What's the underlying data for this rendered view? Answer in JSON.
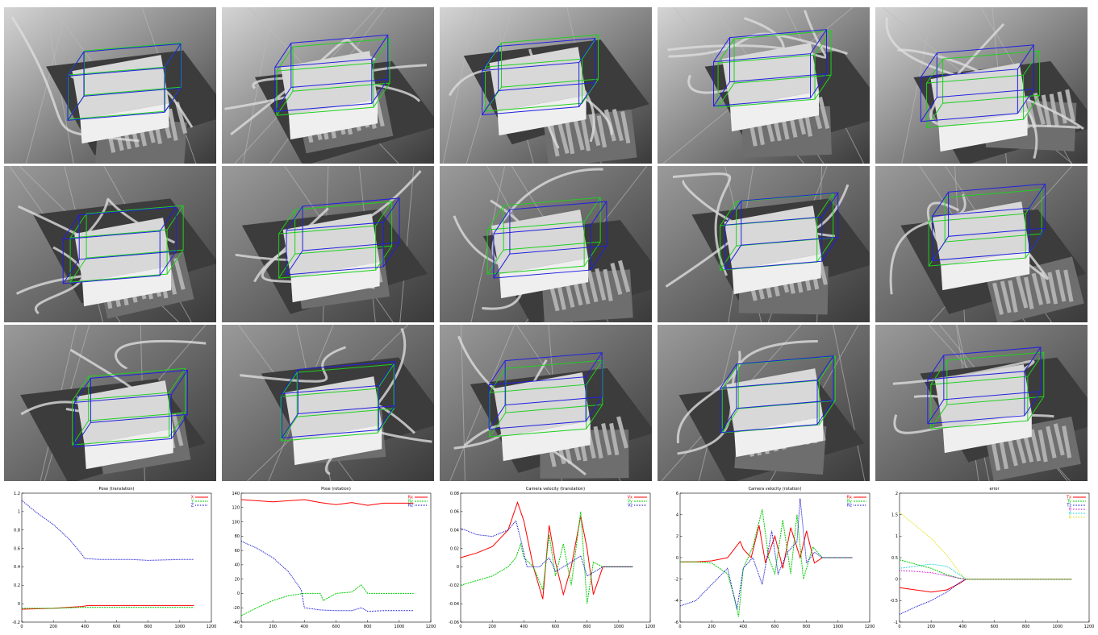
{
  "frames": [
    {
      "name": "frame-r1-c1"
    },
    {
      "name": "frame-r1-c2"
    },
    {
      "name": "frame-r1-c3"
    },
    {
      "name": "frame-r1-c4"
    },
    {
      "name": "frame-r1-c5"
    },
    {
      "name": "frame-r2-c1"
    },
    {
      "name": "frame-r2-c2"
    },
    {
      "name": "frame-r2-c3"
    },
    {
      "name": "frame-r2-c4"
    },
    {
      "name": "frame-r2-c5"
    },
    {
      "name": "frame-r3-c1"
    },
    {
      "name": "frame-r3-c2"
    },
    {
      "name": "frame-r3-c3"
    },
    {
      "name": "frame-r3-c4"
    },
    {
      "name": "frame-r3-c5"
    }
  ],
  "colors": {
    "model_wire": "#2020e0",
    "tracked_wire": "#20d020",
    "red": "#ff0000",
    "green": "#00cc00",
    "blue": "#0000cc",
    "magenta": "#cc00cc",
    "cyan": "#00cccc",
    "yellow": "#e0e000"
  },
  "chart_data": [
    {
      "type": "line",
      "title": "Pose (translation)",
      "xlim": [
        0,
        1200
      ],
      "ylim": [
        -0.2,
        1.2
      ],
      "xticks": [
        0,
        200,
        400,
        600,
        800,
        1000,
        1200
      ],
      "yticks": [
        -0.2,
        0,
        0.2,
        0.4,
        0.6,
        0.8,
        1,
        1.2
      ],
      "legend": "top-right",
      "series": [
        {
          "name": "X",
          "color": "#ff0000",
          "x": [
            0,
            200,
            380,
            420,
            600,
            800,
            1000,
            1090
          ],
          "y": [
            -0.06,
            -0.05,
            -0.03,
            -0.02,
            -0.02,
            -0.02,
            -0.02,
            -0.02
          ]
        },
        {
          "name": "Y",
          "color": "#00cc00",
          "x": [
            0,
            200,
            380,
            420,
            600,
            800,
            1000,
            1090
          ],
          "y": [
            -0.05,
            -0.05,
            -0.04,
            -0.04,
            -0.04,
            -0.04,
            -0.04,
            -0.04
          ]
        },
        {
          "name": "Z",
          "color": "#0000cc",
          "x": [
            0,
            100,
            200,
            300,
            360,
            400,
            500,
            600,
            700,
            800,
            1000,
            1090
          ],
          "y": [
            1.12,
            0.98,
            0.86,
            0.7,
            0.58,
            0.49,
            0.48,
            0.48,
            0.48,
            0.47,
            0.48,
            0.48
          ]
        }
      ]
    },
    {
      "type": "line",
      "title": "Pose (rotation)",
      "xlim": [
        0,
        1200
      ],
      "ylim": [
        -40,
        140
      ],
      "xticks": [
        0,
        200,
        400,
        600,
        800,
        1000,
        1200
      ],
      "yticks": [
        -40,
        -20,
        0,
        20,
        40,
        60,
        80,
        100,
        120,
        140
      ],
      "legend": "top-right",
      "series": [
        {
          "name": "Rx",
          "color": "#ff0000",
          "x": [
            0,
            200,
            400,
            500,
            600,
            700,
            800,
            900,
            1000,
            1090
          ],
          "y": [
            131,
            128,
            131,
            127,
            124,
            127,
            123,
            126,
            126,
            126
          ]
        },
        {
          "name": "Ry",
          "color": "#00cc00",
          "x": [
            0,
            100,
            200,
            300,
            400,
            500,
            520,
            600,
            700,
            760,
            800,
            900,
            1000,
            1090
          ],
          "y": [
            -31,
            -20,
            -10,
            -3,
            0,
            0,
            -10,
            0,
            2,
            12,
            0,
            0,
            0,
            0
          ]
        },
        {
          "name": "Rz",
          "color": "#0000cc",
          "x": [
            0,
            100,
            200,
            300,
            380,
            400,
            500,
            600,
            700,
            760,
            800,
            900,
            1000,
            1090
          ],
          "y": [
            73,
            63,
            50,
            30,
            5,
            -20,
            -23,
            -24,
            -24,
            -20,
            -25,
            -24,
            -24,
            -24
          ]
        }
      ]
    },
    {
      "type": "line",
      "title": "Camera velocity (translation)",
      "xlim": [
        0,
        1200
      ],
      "ylim": [
        -0.06,
        0.08
      ],
      "xticks": [
        0,
        200,
        400,
        600,
        800,
        1000,
        1200
      ],
      "yticks": [
        -0.06,
        -0.04,
        -0.02,
        0,
        0.02,
        0.04,
        0.06,
        0.08
      ],
      "legend": "top-right",
      "series": [
        {
          "name": "Vx",
          "color": "#ff0000",
          "x": [
            0,
            100,
            200,
            300,
            360,
            400,
            460,
            520,
            560,
            600,
            650,
            700,
            760,
            800,
            840,
            900,
            1000,
            1090
          ],
          "y": [
            0.01,
            0.015,
            0.022,
            0.04,
            0.07,
            0.05,
            0.0,
            -0.035,
            0.045,
            0.005,
            -0.03,
            0.0,
            0.055,
            0.02,
            -0.03,
            0.0,
            0.0,
            0.0
          ]
        },
        {
          "name": "Vy",
          "color": "#00cc00",
          "x": [
            0,
            100,
            200,
            300,
            350,
            380,
            400,
            460,
            520,
            560,
            600,
            650,
            700,
            760,
            800,
            840,
            900,
            1000,
            1090
          ],
          "y": [
            -0.02,
            -0.015,
            -0.01,
            0.0,
            0.01,
            0.025,
            0.01,
            0.0,
            -0.025,
            0.035,
            -0.01,
            0.025,
            -0.02,
            0.06,
            -0.04,
            0.005,
            0.0,
            0.0,
            0.0
          ]
        },
        {
          "name": "Vz",
          "color": "#0000cc",
          "x": [
            0,
            100,
            200,
            300,
            350,
            380,
            420,
            500,
            560,
            600,
            700,
            760,
            800,
            900,
            1000,
            1090
          ],
          "y": [
            0.042,
            0.035,
            0.033,
            0.04,
            0.05,
            0.03,
            0.0,
            0.0,
            0.01,
            -0.005,
            0.005,
            0.012,
            -0.01,
            0.0,
            0.0,
            0.0
          ]
        }
      ]
    },
    {
      "type": "line",
      "title": "Camera velocity (rotation)",
      "xlim": [
        0,
        1200
      ],
      "ylim": [
        -6,
        6
      ],
      "xticks": [
        0,
        200,
        400,
        600,
        800,
        1000,
        1200
      ],
      "yticks": [
        -6,
        -4,
        -2,
        0,
        2,
        4,
        6
      ],
      "legend": "top-right",
      "series": [
        {
          "name": "Rx",
          "color": "#ff0000",
          "x": [
            0,
            100,
            200,
            300,
            380,
            400,
            450,
            500,
            540,
            600,
            650,
            700,
            760,
            800,
            850,
            900,
            1000,
            1090
          ],
          "y": [
            -0.4,
            -0.4,
            -0.3,
            0.0,
            1.5,
            0.8,
            0.0,
            3.0,
            -0.5,
            2.0,
            -1.0,
            2.8,
            0.0,
            2.5,
            -0.5,
            0.0,
            0.0,
            0.0
          ]
        },
        {
          "name": "Ry",
          "color": "#00cc00",
          "x": [
            0,
            100,
            200,
            300,
            340,
            370,
            400,
            460,
            520,
            560,
            600,
            650,
            700,
            740,
            780,
            800,
            840,
            900,
            1000,
            1090
          ],
          "y": [
            -0.4,
            -0.4,
            -0.5,
            -1.5,
            -3.5,
            -5.5,
            -1.0,
            1.0,
            4.5,
            0.0,
            -1.5,
            3.5,
            -1.5,
            4.0,
            -2.0,
            -1.0,
            1.0,
            0.0,
            0.0,
            0.0
          ]
        },
        {
          "name": "Rz",
          "color": "#0000cc",
          "x": [
            0,
            100,
            200,
            300,
            360,
            400,
            460,
            520,
            580,
            620,
            680,
            740,
            760,
            800,
            850,
            900,
            1000,
            1090
          ],
          "y": [
            -4.5,
            -4.0,
            -2.5,
            -1.0,
            -4.8,
            -1.0,
            0.0,
            -2.5,
            2.5,
            -1.5,
            0.5,
            1.5,
            5.5,
            -0.5,
            0.5,
            0.0,
            0.0,
            0.0
          ]
        }
      ]
    },
    {
      "type": "line",
      "title": "error",
      "xlim": [
        0,
        1200
      ],
      "ylim": [
        -1,
        2
      ],
      "xticks": [
        0,
        200,
        400,
        600,
        800,
        1000,
        1200
      ],
      "yticks": [
        -1,
        -0.5,
        0,
        0.5,
        1,
        1.5,
        2
      ],
      "legend": "top-right",
      "series": [
        {
          "name": "Tx",
          "color": "#ff0000",
          "x": [
            0,
            100,
            200,
            300,
            380,
            420,
            600,
            800,
            1000,
            1090
          ],
          "y": [
            -0.2,
            -0.25,
            -0.3,
            -0.25,
            -0.1,
            0.0,
            0.0,
            0.0,
            0.0,
            0.0
          ]
        },
        {
          "name": "Ty",
          "color": "#00cc00",
          "x": [
            0,
            100,
            200,
            300,
            380,
            420,
            600,
            800,
            1000,
            1090
          ],
          "y": [
            0.45,
            0.35,
            0.25,
            0.1,
            0.02,
            0.0,
            0.0,
            0.0,
            0.0,
            0.0
          ]
        },
        {
          "name": "Tz",
          "color": "#0000cc",
          "x": [
            0,
            100,
            200,
            300,
            380,
            420,
            600,
            800,
            1000,
            1090
          ],
          "y": [
            -0.82,
            -0.65,
            -0.5,
            -0.3,
            -0.08,
            0.0,
            0.0,
            0.0,
            0.0,
            0.0
          ]
        },
        {
          "name": "θ",
          "color": "#cc00cc",
          "x": [
            0,
            100,
            200,
            300,
            380,
            420,
            600,
            800,
            1000,
            1090
          ],
          "y": [
            0.2,
            0.18,
            0.15,
            0.08,
            0.02,
            0.0,
            0.0,
            0.0,
            0.0,
            0.0
          ]
        },
        {
          "name": "θ",
          "color": "#00cccc",
          "x": [
            0,
            100,
            200,
            300,
            380,
            420,
            600,
            800,
            1000,
            1090
          ],
          "y": [
            0.25,
            0.3,
            0.35,
            0.3,
            0.1,
            0.0,
            0.0,
            0.0,
            0.0,
            0.0
          ]
        },
        {
          "name": "θ",
          "color": "#e0e000",
          "x": [
            0,
            100,
            200,
            300,
            380,
            420,
            600,
            800,
            1000,
            1090
          ],
          "y": [
            1.55,
            1.25,
            0.95,
            0.55,
            0.15,
            0.0,
            0.0,
            0.0,
            0.0,
            0.0
          ]
        }
      ]
    }
  ]
}
